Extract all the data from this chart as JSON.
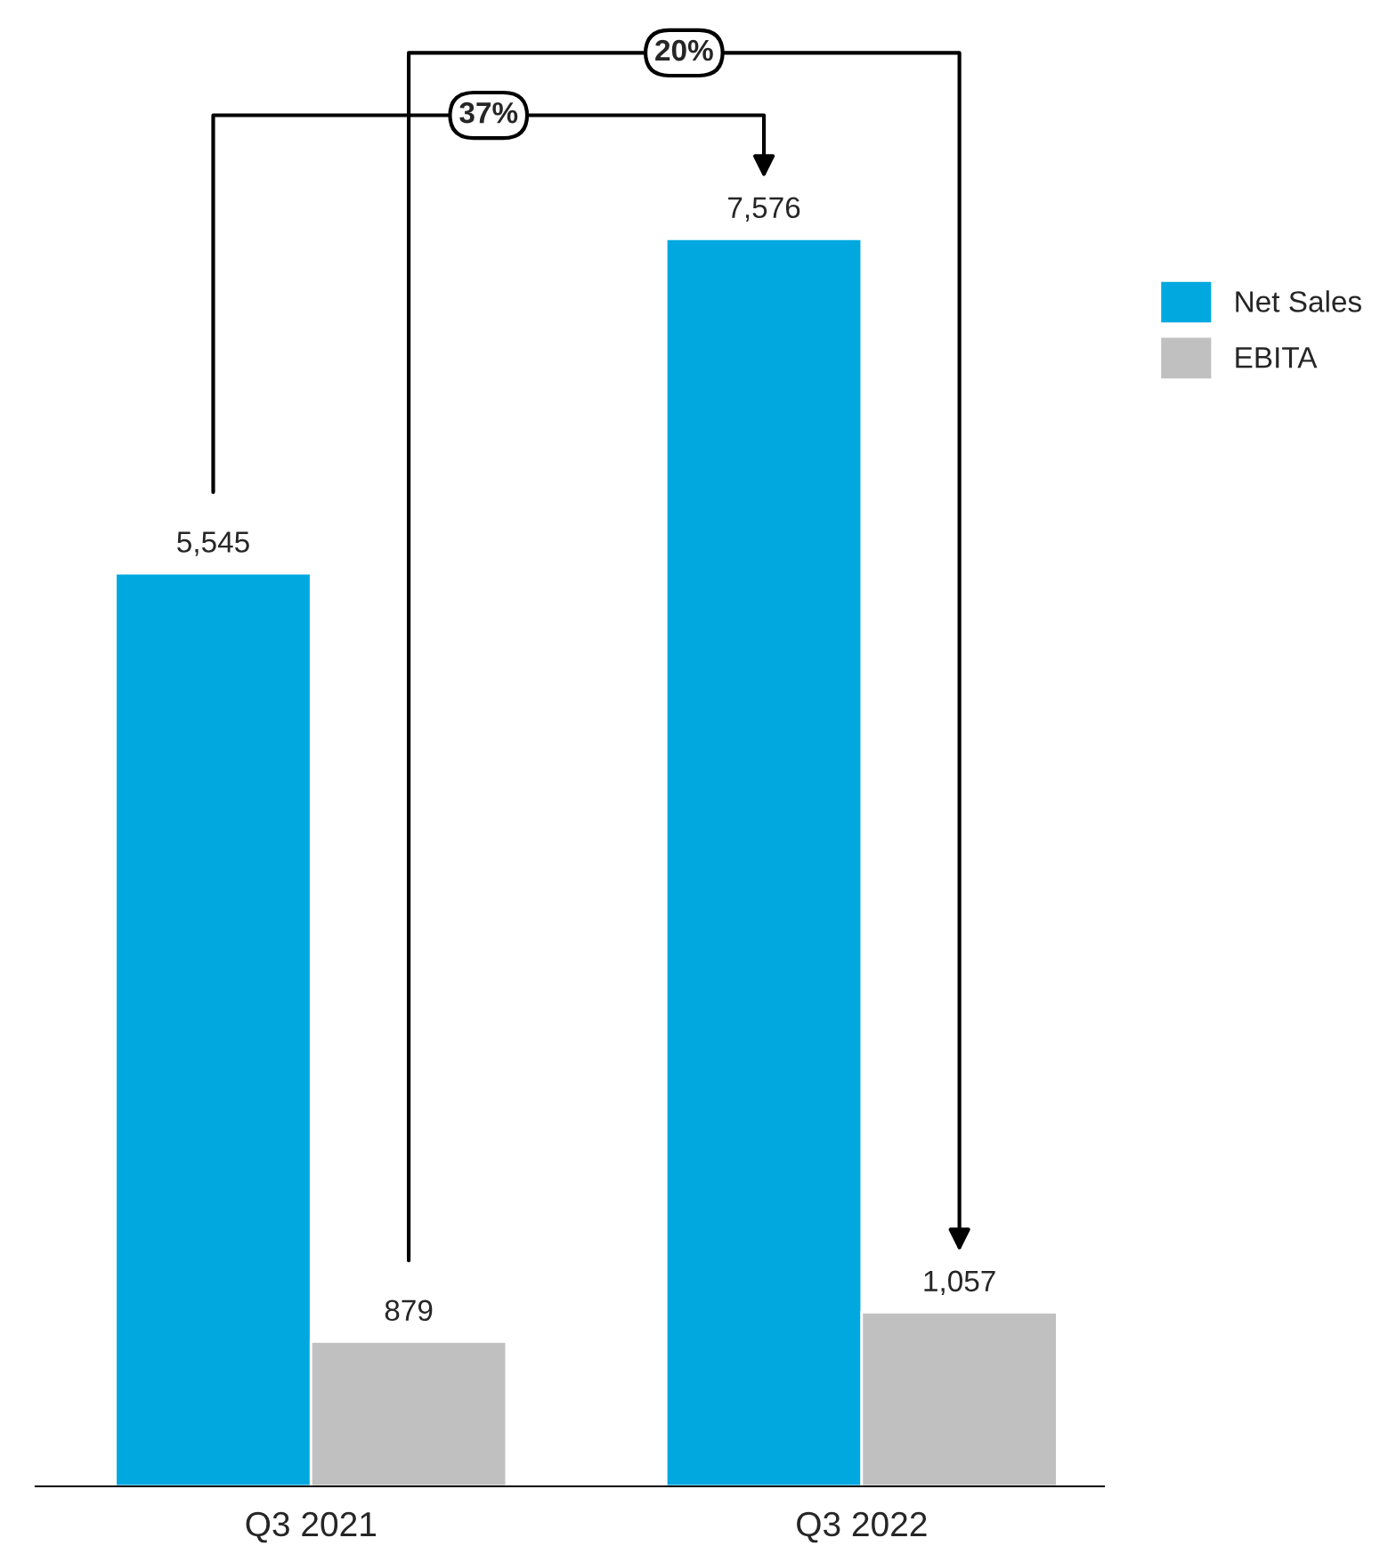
{
  "chart_data": {
    "type": "bar",
    "categories": [
      "Q3 2021",
      "Q3 2022"
    ],
    "series": [
      {
        "name": "Net Sales",
        "color": "#00a8e0",
        "values": [
          5545,
          7576
        ],
        "value_labels": [
          "5,545",
          "7,576"
        ]
      },
      {
        "name": "EBITA",
        "color": "#c0c0c0",
        "values": [
          879,
          1057
        ],
        "value_labels": [
          "879",
          "1,057"
        ]
      }
    ],
    "annotations": [
      "37%",
      "20%"
    ],
    "legend": "top right",
    "grid": false
  }
}
